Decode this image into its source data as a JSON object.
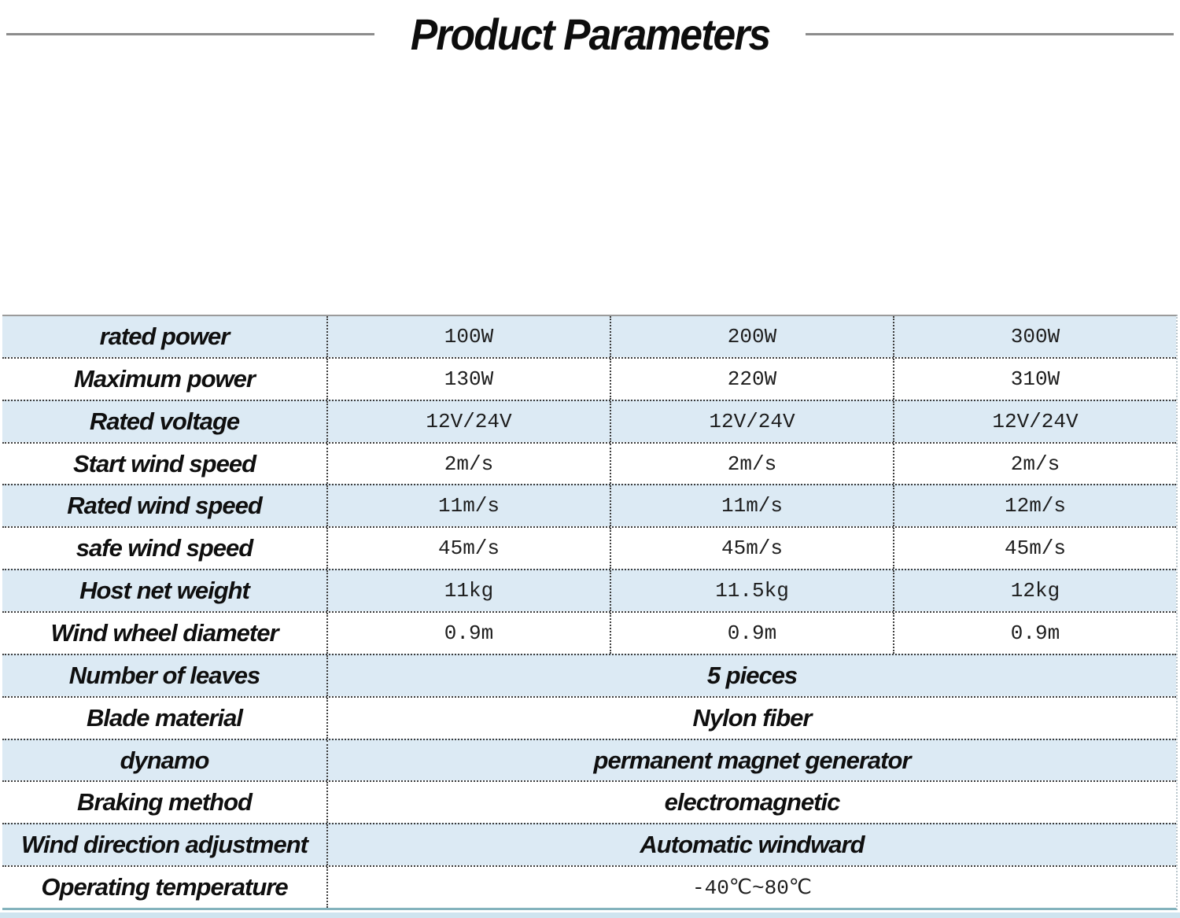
{
  "title": "Product Parameters",
  "colors": {
    "row_shade": "#dceaf4",
    "row_plain": "#ffffff",
    "divider_dotted": "#3c3c3c",
    "outer_top": "#9b9b9b",
    "outer_bottom_teal": "#84b3bd",
    "bottom_strip": "#cfe4ef",
    "title_rule": "#8c8c8c"
  },
  "table": {
    "rows": [
      {
        "label": "rated power",
        "values": [
          "100W",
          "200W",
          "300W"
        ],
        "shaded": true
      },
      {
        "label": "Maximum power",
        "values": [
          "130W",
          "220W",
          "310W"
        ],
        "shaded": false
      },
      {
        "label": "Rated voltage",
        "values": [
          "12V/24V",
          "12V/24V",
          "12V/24V"
        ],
        "shaded": true
      },
      {
        "label": "Start wind speed",
        "values": [
          "2m/s",
          "2m/s",
          "2m/s"
        ],
        "shaded": false
      },
      {
        "label": "Rated wind speed",
        "values": [
          "11m/s",
          "11m/s",
          "12m/s"
        ],
        "shaded": true
      },
      {
        "label": "safe wind speed",
        "values": [
          "45m/s",
          "45m/s",
          "45m/s"
        ],
        "shaded": false
      },
      {
        "label": "Host net weight",
        "values": [
          "11kg",
          "11.5kg",
          "12kg"
        ],
        "shaded": true
      },
      {
        "label": "Wind wheel diameter",
        "values": [
          "0.9m",
          "0.9m",
          "0.9m"
        ],
        "shaded": false
      },
      {
        "label": "Number of leaves",
        "span": "5 pieces",
        "span_style": "italic",
        "shaded": true
      },
      {
        "label": "Blade material",
        "span": "Nylon fiber",
        "span_style": "italic",
        "shaded": false
      },
      {
        "label": "dynamo",
        "span": "permanent magnet generator",
        "span_style": "italic",
        "shaded": true
      },
      {
        "label": "Braking method",
        "span": "electromagnetic",
        "span_style": "italic",
        "shaded": false
      },
      {
        "label": "Wind direction adjustment",
        "span": "Automatic windward",
        "span_style": "italic",
        "shaded": true
      },
      {
        "label": "Operating temperature",
        "span": "-40℃~80℃",
        "span_style": "mono",
        "shaded": false
      }
    ]
  }
}
